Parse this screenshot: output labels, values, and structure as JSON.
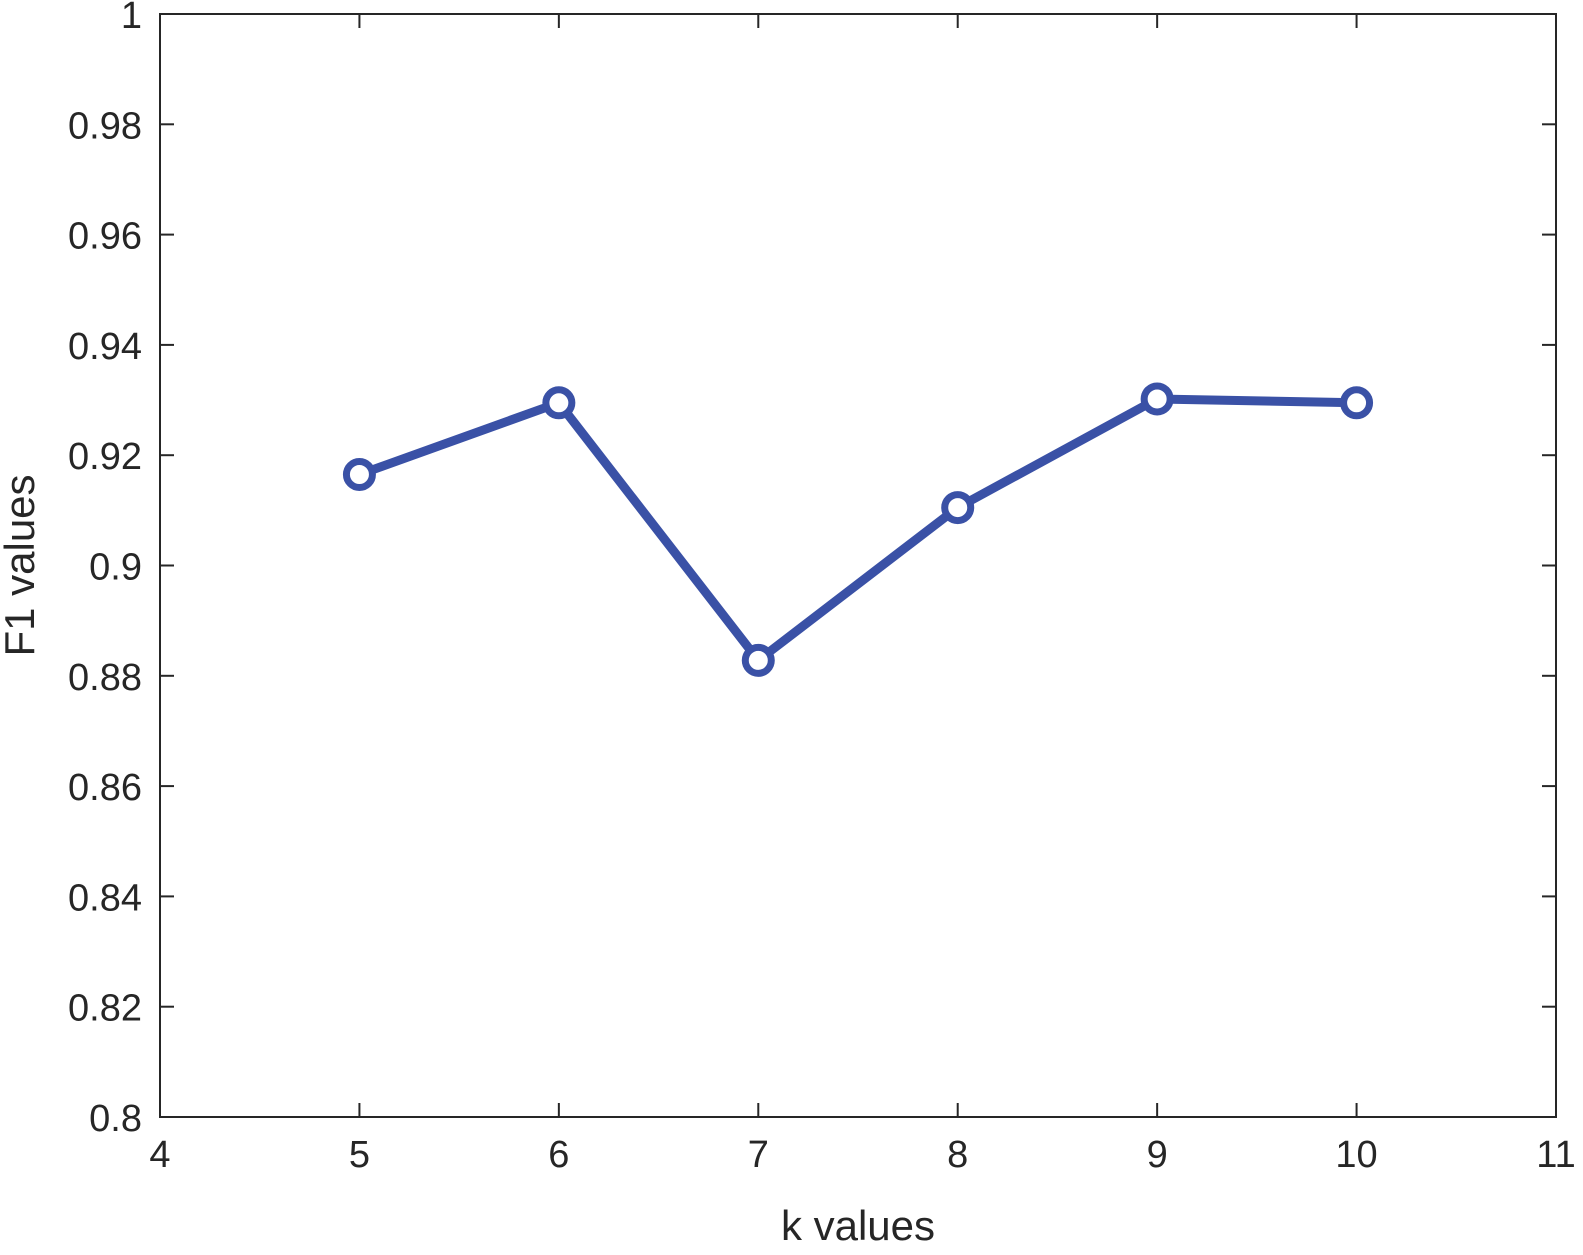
{
  "chart_data": {
    "type": "line",
    "title": "",
    "xlabel": "k values",
    "ylabel": "F1 values",
    "xlim": [
      4,
      11
    ],
    "ylim": [
      0.8,
      1
    ],
    "xticks": [
      "4",
      "5",
      "6",
      "7",
      "8",
      "9",
      "10",
      "11"
    ],
    "yticks": [
      "0.8",
      "0.82",
      "0.84",
      "0.86",
      "0.88",
      "0.9",
      "0.92",
      "0.94",
      "0.96",
      "0.98",
      "1"
    ],
    "grid": false,
    "series": [
      {
        "x": [
          5,
          6,
          7,
          8,
          9,
          10
        ],
        "y": [
          0.9165,
          0.9295,
          0.8828,
          0.9105,
          0.9302,
          0.9295
        ],
        "color": "#3a51a6",
        "marker": "circle"
      }
    ]
  }
}
